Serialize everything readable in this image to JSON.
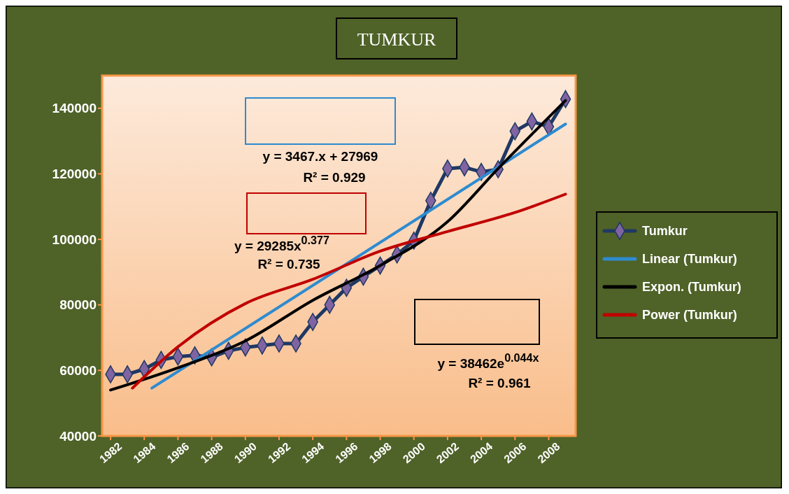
{
  "chart_data": {
    "type": "line",
    "title": "TUMKUR",
    "xlim": [
      1981.5,
      2009.6
    ],
    "xticks": [
      1982,
      1984,
      1986,
      1988,
      1990,
      1992,
      1994,
      1996,
      1998,
      2000,
      2002,
      2004,
      2006,
      2008
    ],
    "ylim": [
      40000,
      150000
    ],
    "yticks": [
      40000,
      60000,
      80000,
      100000,
      120000,
      140000
    ],
    "legend": "right",
    "grid": false,
    "x": [
      1982,
      1983,
      1984,
      1985,
      1986,
      1987,
      1988,
      1989,
      1990,
      1991,
      1992,
      1993,
      1994,
      1995,
      1996,
      1997,
      1998,
      1999,
      2000,
      2001,
      2002,
      2003,
      2004,
      2005,
      2006,
      2007,
      2008,
      2009
    ],
    "series": [
      {
        "name": "Tumkur",
        "color": "#1f3864",
        "marker": "diamond",
        "values": [
          58800,
          58800,
          60400,
          63200,
          64200,
          64600,
          64000,
          66000,
          67000,
          67600,
          68200,
          68200,
          74800,
          80000,
          85200,
          88600,
          92000,
          95400,
          99600,
          111800,
          121600,
          122000,
          120600,
          121400,
          133000,
          136000,
          134400,
          142800
        ]
      },
      {
        "name": "Linear (Tumkur)",
        "color": "#2e8bd0",
        "marker": "none",
        "x": [
          1984.45,
          2009
        ],
        "values": [
          54600,
          135200
        ]
      },
      {
        "name": "Expon. (Tumkur)",
        "color": "#000000",
        "marker": "none",
        "x": [
          1982,
          1986,
          1990,
          1994,
          1998,
          2002,
          2005,
          2009
        ],
        "values": [
          54000,
          60800,
          69000,
          81400,
          92000,
          105400,
          121600,
          142400
        ]
      },
      {
        "name": "Power (Tumkur)",
        "color": "#c00000",
        "marker": "none",
        "x": [
          1983.3,
          1986,
          1990,
          1994,
          1998,
          2002,
          2006,
          2009
        ],
        "values": [
          54600,
          67200,
          80400,
          87800,
          96400,
          102400,
          108200,
          113800
        ]
      }
    ],
    "annotations": [
      "y = 3467.x + 27969",
      "R² = 0.929",
      "y = 29285x$^{0.377}$",
      "R² = 0.735",
      "y = 38462e$^{0.044x}$",
      "R² = 0.961"
    ]
  }
}
